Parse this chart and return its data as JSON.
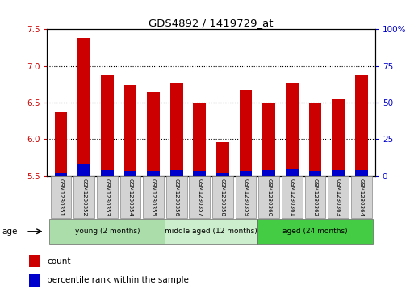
{
  "title": "GDS4892 / 1419729_at",
  "samples": [
    "GSM1230351",
    "GSM1230352",
    "GSM1230353",
    "GSM1230354",
    "GSM1230355",
    "GSM1230356",
    "GSM1230357",
    "GSM1230358",
    "GSM1230359",
    "GSM1230360",
    "GSM1230361",
    "GSM1230362",
    "GSM1230363",
    "GSM1230364"
  ],
  "counts": [
    6.37,
    7.38,
    6.87,
    6.74,
    6.64,
    6.76,
    6.49,
    5.96,
    6.67,
    6.49,
    6.76,
    6.5,
    6.55,
    6.88
  ],
  "percentile_ranks": [
    2,
    8,
    4,
    3,
    3,
    4,
    3,
    2,
    3,
    4,
    5,
    3,
    4,
    4
  ],
  "ylim_left": [
    5.5,
    7.5
  ],
  "ylim_right": [
    0,
    100
  ],
  "yticks_left": [
    5.5,
    6.0,
    6.5,
    7.0,
    7.5
  ],
  "yticks_right": [
    0,
    25,
    50,
    75,
    100
  ],
  "ytick_labels_right": [
    "0",
    "25",
    "50",
    "75",
    "100%"
  ],
  "bar_color": "#cc0000",
  "percentile_color": "#0000cc",
  "groups": [
    {
      "label": "young (2 months)",
      "start": 0,
      "end": 5,
      "color": "#aaddaa"
    },
    {
      "label": "middle aged (12 months)",
      "start": 5,
      "end": 9,
      "color": "#cceecc"
    },
    {
      "label": "aged (24 months)",
      "start": 9,
      "end": 14,
      "color": "#44cc44"
    }
  ],
  "age_label": "age",
  "legend_count_label": "count",
  "legend_percentile_label": "percentile rank within the sample",
  "bar_width": 0.55,
  "base_value": 5.5,
  "grid_yticks": [
    6.0,
    6.5,
    7.0
  ]
}
